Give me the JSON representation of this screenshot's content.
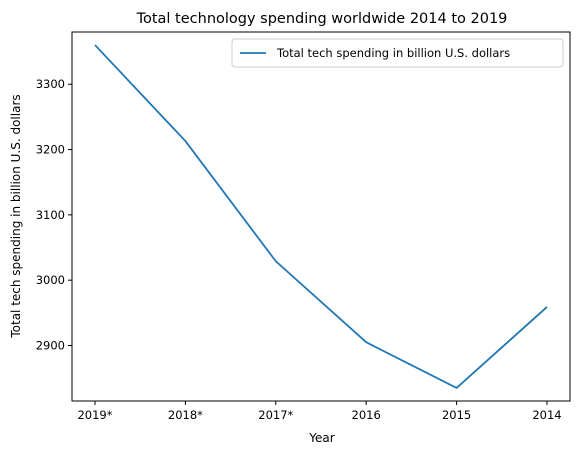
{
  "chart_data": {
    "type": "line",
    "title": "Total technology spending worldwide 2014 to 2019",
    "xlabel": "Year",
    "ylabel": "Total tech spending in billion U.S. dollars",
    "categories": [
      "2019*",
      "2018*",
      "2017*",
      "2016",
      "2015",
      "2014"
    ],
    "series": [
      {
        "name": "Total tech spending in billion U.S. dollars",
        "values": [
          3360,
          3213,
          3029,
          2905,
          2835,
          2959
        ],
        "color": "#1f77b4"
      }
    ],
    "ylim": [
      2815,
      3380
    ],
    "yticks": [
      2900,
      3000,
      3100,
      3200,
      3300
    ],
    "grid": false,
    "legend": "top-right"
  }
}
